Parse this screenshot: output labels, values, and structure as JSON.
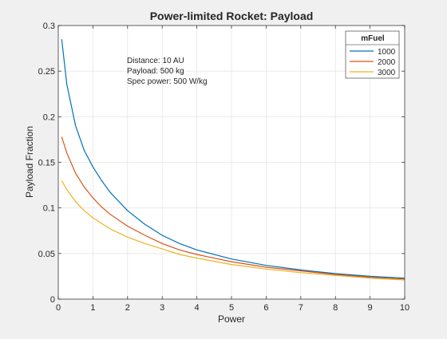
{
  "chart_data": {
    "type": "line",
    "title": "Power-limited Rocket: Payload",
    "xlabel": "Power",
    "ylabel": "Payload Fraction",
    "xlim": [
      0,
      10
    ],
    "ylim": [
      0,
      0.3
    ],
    "xticks": [
      0,
      1,
      2,
      3,
      4,
      5,
      6,
      7,
      8,
      9,
      10
    ],
    "xtick_labels": [
      "0",
      "1",
      "2",
      "3",
      "4",
      "5",
      "6",
      "7",
      "8",
      "9",
      "10"
    ],
    "yticks": [
      0,
      0.05,
      0.1,
      0.15,
      0.2,
      0.25,
      0.3
    ],
    "ytick_labels": [
      "0",
      "0.05",
      "0.1",
      "0.15",
      "0.2",
      "0.25",
      "0.3"
    ],
    "grid": true,
    "legend": {
      "title": "mFuel",
      "placement": "top-right"
    },
    "annotation": [
      "Distance: 10 AU",
      "Payload: 500 kg",
      "Spec power: 500 W/kg"
    ],
    "x": [
      0.1,
      0.25,
      0.5,
      0.75,
      1,
      1.25,
      1.5,
      2,
      2.5,
      3,
      3.5,
      4,
      5,
      6,
      7,
      8,
      9,
      10
    ],
    "series": [
      {
        "name": "1000",
        "color": "#0072BD",
        "values": [
          0.285,
          0.235,
          0.19,
          0.163,
          0.145,
          0.13,
          0.117,
          0.097,
          0.082,
          0.07,
          0.061,
          0.054,
          0.044,
          0.037,
          0.032,
          0.028,
          0.025,
          0.023
        ]
      },
      {
        "name": "2000",
        "color": "#D95319",
        "values": [
          0.178,
          0.16,
          0.138,
          0.123,
          0.111,
          0.101,
          0.093,
          0.08,
          0.07,
          0.061,
          0.054,
          0.049,
          0.041,
          0.035,
          0.031,
          0.027,
          0.024,
          0.022
        ]
      },
      {
        "name": "3000",
        "color": "#EDB120",
        "values": [
          0.13,
          0.12,
          0.107,
          0.097,
          0.089,
          0.083,
          0.077,
          0.068,
          0.061,
          0.055,
          0.049,
          0.045,
          0.038,
          0.033,
          0.029,
          0.026,
          0.023,
          0.021
        ]
      }
    ]
  }
}
